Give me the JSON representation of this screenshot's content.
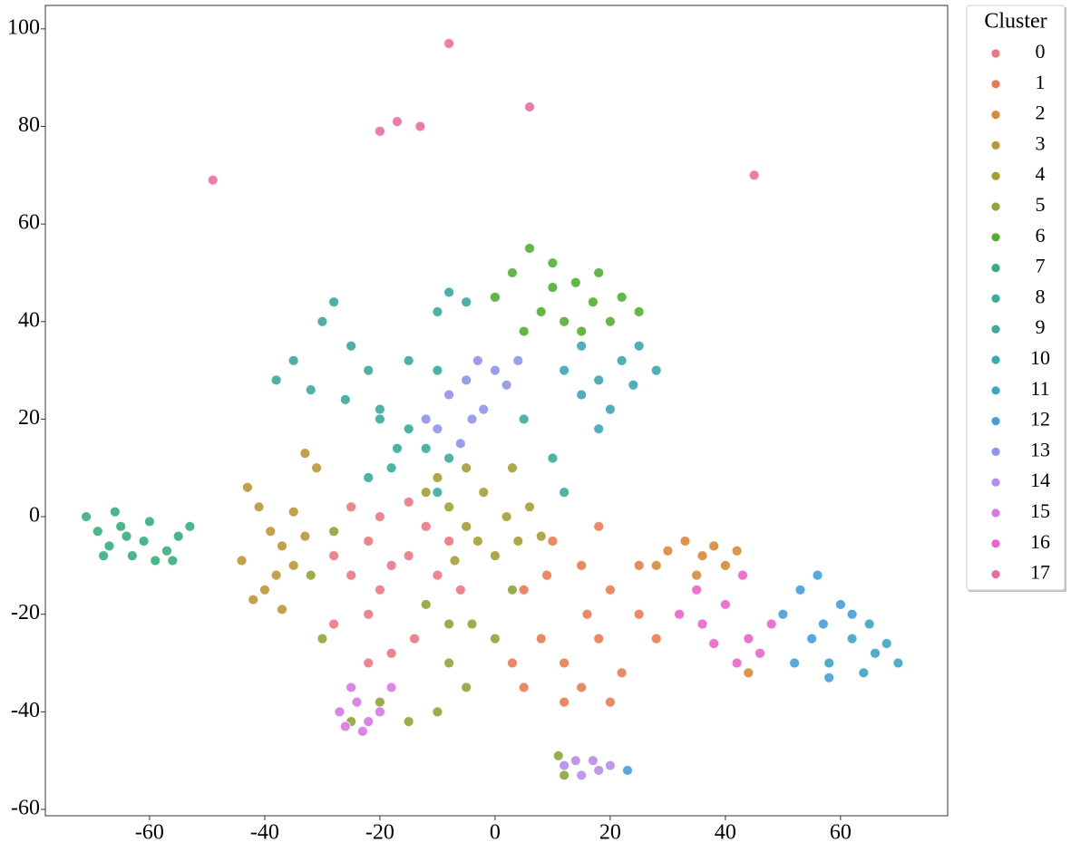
{
  "chart_data": {
    "type": "scatter",
    "xlim": [
      -78.1,
      78.6
    ],
    "ylim": [
      -61.3,
      104.8
    ],
    "xticks": [
      -60,
      -40,
      -20,
      0,
      20,
      40,
      60
    ],
    "yticks": [
      -60,
      -40,
      -20,
      0,
      20,
      40,
      60,
      80,
      100
    ],
    "grid": false,
    "legend_title": "Cluster",
    "legend_position": "outside-right",
    "series": [
      {
        "name": "0",
        "color": "#f0757f",
        "x": [
          -28,
          -25,
          -22,
          -18,
          -15,
          -10,
          -6,
          -20,
          -15,
          -25,
          -22,
          -18,
          -22,
          -14,
          -28,
          -8,
          -12,
          -20
        ],
        "values": [
          -8,
          -12,
          -5,
          -10,
          -8,
          -12,
          -15,
          0,
          3,
          2,
          -20,
          -28,
          -30,
          -25,
          -22,
          -5,
          -2,
          -15
        ]
      },
      {
        "name": "1",
        "color": "#ed7a4f",
        "x": [
          5,
          8,
          12,
          15,
          18,
          20,
          22,
          25,
          15,
          10,
          18,
          28,
          5,
          12,
          20,
          3,
          25,
          16,
          9
        ],
        "values": [
          -15,
          -25,
          -30,
          -35,
          -25,
          -15,
          -32,
          -20,
          -10,
          -5,
          -2,
          -25,
          -35,
          -38,
          -38,
          -30,
          -10,
          -20,
          -12
        ]
      },
      {
        "name": "2",
        "color": "#d98b32",
        "x": [
          30,
          33,
          36,
          40,
          38,
          42,
          35,
          28,
          44
        ],
        "values": [
          -7,
          -5,
          -8,
          -10,
          -6,
          -7,
          -12,
          -10,
          -32
        ]
      },
      {
        "name": "3",
        "color": "#bb9832",
        "x": [
          -43,
          -41,
          -39,
          -37,
          -35,
          -40,
          -37,
          -42,
          -33,
          -35,
          -33,
          -31,
          -44,
          -38
        ],
        "values": [
          6,
          2,
          -3,
          -6,
          -10,
          -15,
          -19,
          -17,
          -4,
          1,
          13,
          10,
          -9,
          -12
        ]
      },
      {
        "name": "4",
        "color": "#a59f31",
        "x": [
          -12,
          -8,
          -5,
          -2,
          2,
          4,
          0,
          -5,
          -10,
          6,
          3,
          8,
          -3,
          -7
        ],
        "values": [
          5,
          2,
          -2,
          5,
          0,
          -5,
          -8,
          10,
          8,
          2,
          10,
          -4,
          -5,
          -9
        ]
      },
      {
        "name": "5",
        "color": "#8da734",
        "x": [
          -32,
          -30,
          -28,
          -12,
          -8,
          -5,
          -10,
          -15,
          0,
          -4,
          3,
          -20,
          -25,
          -8,
          11,
          12
        ],
        "values": [
          -12,
          -25,
          -3,
          -18,
          -30,
          -35,
          -40,
          -42,
          -25,
          -22,
          -15,
          -38,
          -42,
          -22,
          -49,
          -53
        ]
      },
      {
        "name": "6",
        "color": "#50b131",
        "x": [
          3,
          6,
          10,
          14,
          18,
          22,
          25,
          8,
          12,
          5,
          15,
          20,
          0,
          17,
          10
        ],
        "values": [
          50,
          55,
          52,
          48,
          50,
          45,
          42,
          42,
          40,
          38,
          38,
          40,
          45,
          44,
          47
        ]
      },
      {
        "name": "7",
        "color": "#33b07a",
        "x": [
          -71,
          -69,
          -67,
          -65,
          -63,
          -61,
          -59,
          -57,
          -55,
          -53,
          -66,
          -60,
          -56,
          -68,
          -64
        ],
        "values": [
          0,
          -3,
          -6,
          -2,
          -8,
          -5,
          -9,
          -7,
          -4,
          -2,
          1,
          -1,
          -9,
          -8,
          -4
        ]
      },
      {
        "name": "8",
        "color": "#35ad9c",
        "x": [
          -18,
          -15,
          -20,
          -12,
          -22,
          -8,
          -10,
          5,
          10,
          12,
          -17
        ],
        "values": [
          10,
          18,
          22,
          14,
          8,
          12,
          5,
          20,
          12,
          5,
          14
        ]
      },
      {
        "name": "9",
        "color": "#36ab9f",
        "x": [
          -38,
          -35,
          -30,
          -28,
          -25,
          -22,
          -32,
          -20,
          -15,
          -10,
          -8,
          -5,
          -10,
          -26
        ],
        "values": [
          28,
          32,
          40,
          44,
          35,
          30,
          26,
          20,
          32,
          30,
          46,
          44,
          42,
          24
        ]
      },
      {
        "name": "10",
        "color": "#38a9b5",
        "x": [
          12,
          15,
          18,
          22,
          25,
          28,
          20,
          18,
          15,
          24
        ],
        "values": [
          30,
          35,
          28,
          32,
          35,
          30,
          22,
          18,
          25,
          27
        ]
      },
      {
        "name": "11",
        "color": "#3ba6c8",
        "x": [
          62,
          66,
          70,
          58,
          65,
          68,
          64
        ],
        "values": [
          -25,
          -28,
          -30,
          -30,
          -22,
          -26,
          -32
        ]
      },
      {
        "name": "12",
        "color": "#41a0e0",
        "x": [
          50,
          53,
          56,
          60,
          55,
          58,
          52,
          62,
          57,
          23
        ],
        "values": [
          -20,
          -15,
          -12,
          -18,
          -25,
          -33,
          -30,
          -20,
          -22,
          -52
        ]
      },
      {
        "name": "13",
        "color": "#8e94ef",
        "x": [
          -12,
          -8,
          -5,
          -3,
          0,
          2,
          -4,
          -6,
          -10,
          4,
          -2
        ],
        "values": [
          20,
          25,
          28,
          32,
          30,
          27,
          20,
          15,
          18,
          32,
          22
        ]
      },
      {
        "name": "14",
        "color": "#b98bf0",
        "x": [
          12,
          15,
          18,
          20,
          14,
          17
        ],
        "values": [
          -51,
          -53,
          -52,
          -51,
          -50,
          -50
        ]
      },
      {
        "name": "15",
        "color": "#dc74ea",
        "x": [
          -27,
          -24,
          -22,
          -25,
          -20,
          -23,
          -18,
          -26
        ],
        "values": [
          -40,
          -38,
          -42,
          -35,
          -40,
          -44,
          -35,
          -43
        ]
      },
      {
        "name": "16",
        "color": "#ee62cf",
        "x": [
          32,
          36,
          40,
          44,
          42,
          46,
          38,
          35,
          48,
          43
        ],
        "values": [
          -20,
          -22,
          -18,
          -25,
          -30,
          -28,
          -26,
          -15,
          -22,
          -12
        ]
      },
      {
        "name": "17",
        "color": "#ef6aa3",
        "x": [
          -49,
          -20,
          -17,
          -13,
          -8,
          6,
          45
        ],
        "values": [
          69,
          79,
          81,
          80,
          97,
          84,
          70
        ]
      }
    ]
  }
}
